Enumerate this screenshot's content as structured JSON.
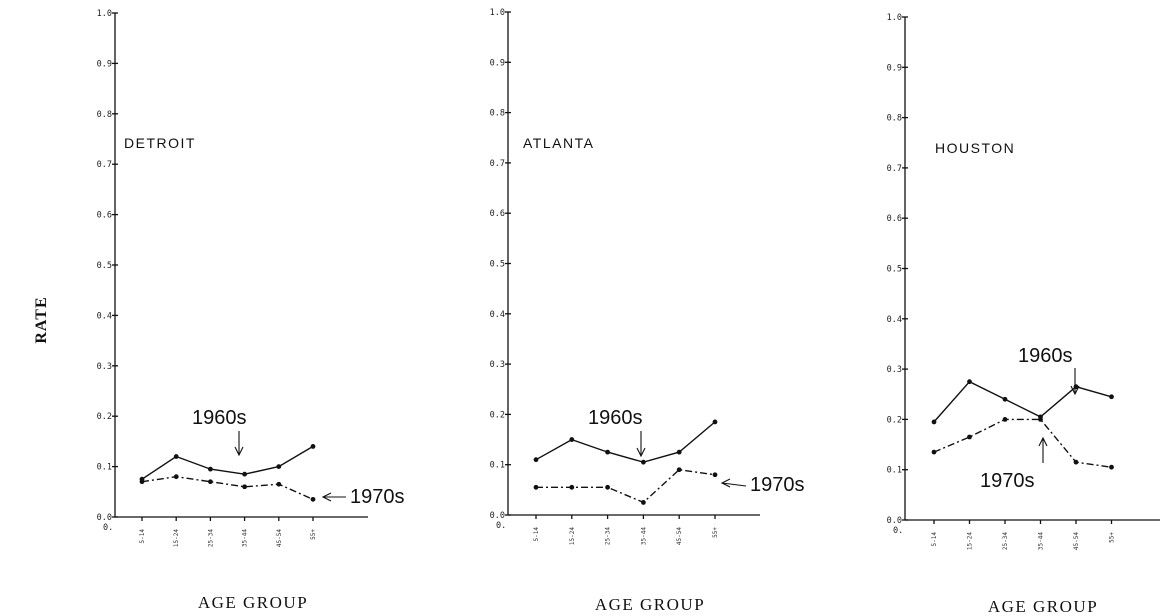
{
  "chart_data": [
    {
      "type": "line",
      "title": "DETROIT",
      "xlabel": "AGE GROUP",
      "ylabel": "RATE",
      "ylim": [
        0.0,
        1.0
      ],
      "yticks": [
        "0.0",
        "0.1",
        "0.2",
        "0.3",
        "0.4",
        "0.5",
        "0.6",
        "0.7",
        "0.8",
        "0.9",
        "1.0"
      ],
      "origin_label": "0.",
      "categories": [
        "5-14",
        "15-24",
        "25-34",
        "35-44",
        "45-54",
        "55+"
      ],
      "series": [
        {
          "name": "1960s",
          "style": "solid",
          "values": [
            0.075,
            0.12,
            0.095,
            0.085,
            0.1,
            0.14
          ]
        },
        {
          "name": "1970s",
          "style": "dashdot",
          "values": [
            0.07,
            0.08,
            0.07,
            0.06,
            0.065,
            0.035
          ]
        }
      ]
    },
    {
      "type": "line",
      "title": "ATLANTA",
      "xlabel": "AGE GROUP",
      "ylabel": "",
      "ylim": [
        0.0,
        1.0
      ],
      "yticks": [
        "0.0",
        "0.1",
        "0.2",
        "0.3",
        "0.4",
        "0.5",
        "0.6",
        "0.7",
        "0.8",
        "0.9",
        "1.0"
      ],
      "origin_label": "0.",
      "categories": [
        "5-14",
        "15-24",
        "25-34",
        "35-44",
        "45-54",
        "55+"
      ],
      "series": [
        {
          "name": "1960s",
          "style": "solid",
          "values": [
            0.11,
            0.15,
            0.125,
            0.105,
            0.125,
            0.185
          ]
        },
        {
          "name": "1970s",
          "style": "dashdot",
          "values": [
            0.055,
            0.055,
            0.055,
            0.025,
            0.09,
            0.08
          ]
        }
      ]
    },
    {
      "type": "line",
      "title": "HOUSTON",
      "xlabel": "AGE GROUP",
      "ylabel": "",
      "ylim": [
        0.0,
        1.0
      ],
      "yticks": [
        "0.0",
        "0.1",
        "0.2",
        "0.3",
        "0.4",
        "0.5",
        "0.6",
        "0.7",
        "0.8",
        "0.9",
        "1.0"
      ],
      "origin_label": "0.",
      "categories": [
        "5-14",
        "15-24",
        "25-34",
        "35-44",
        "45-54",
        "55+"
      ],
      "series": [
        {
          "name": "1960s",
          "style": "solid",
          "values": [
            0.195,
            0.275,
            0.24,
            0.205,
            0.265,
            0.245
          ]
        },
        {
          "name": "1970s",
          "style": "dashdot",
          "values": [
            0.135,
            0.165,
            0.2,
            0.2,
            0.115,
            0.105
          ]
        }
      ]
    }
  ]
}
